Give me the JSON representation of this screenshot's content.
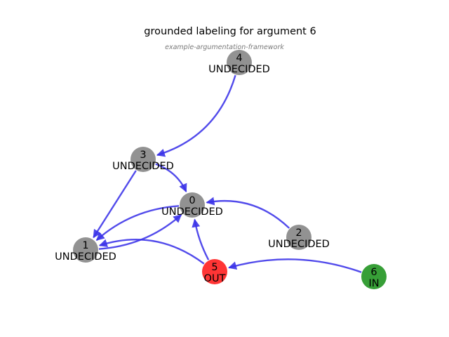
{
  "title": "grounded labeling for argument 6",
  "subtitle": "example-argumentation-framework",
  "colors": {
    "UNDECIDED": "#8c8c8c",
    "OUT": "#ff2a2a",
    "IN": "#2c9a2c",
    "edge": "#3a32e8"
  },
  "nodes": [
    {
      "id": "0",
      "label": "UNDECIDED"
    },
    {
      "id": "1",
      "label": "UNDECIDED"
    },
    {
      "id": "2",
      "label": "UNDECIDED"
    },
    {
      "id": "3",
      "label": "UNDECIDED"
    },
    {
      "id": "4",
      "label": "UNDECIDED"
    },
    {
      "id": "5",
      "label": "OUT"
    },
    {
      "id": "6",
      "label": "IN"
    }
  ],
  "edges": [
    {
      "from": "4",
      "to": "3"
    },
    {
      "from": "3",
      "to": "1"
    },
    {
      "from": "3",
      "to": "0"
    },
    {
      "from": "0",
      "to": "1"
    },
    {
      "from": "1",
      "to": "0"
    },
    {
      "from": "2",
      "to": "0"
    },
    {
      "from": "5",
      "to": "0"
    },
    {
      "from": "5",
      "to": "1"
    },
    {
      "from": "6",
      "to": "5"
    }
  ]
}
